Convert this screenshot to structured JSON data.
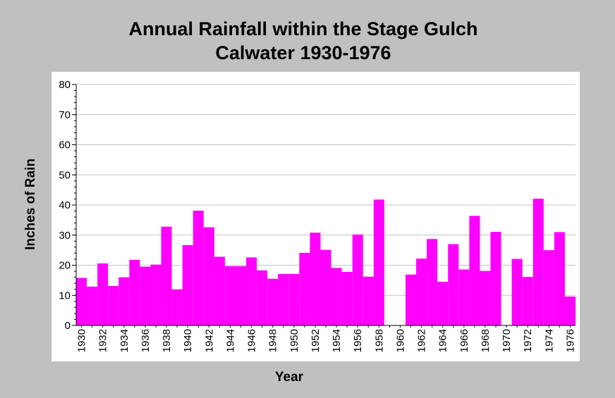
{
  "chart_data": {
    "type": "bar",
    "title": "Annual Rainfall within the Stage Gulch",
    "subtitle": "Calwater 1930-1976",
    "xlabel": "Year",
    "ylabel": "Inches of Rain",
    "ylim": [
      0,
      80
    ],
    "yticks": [
      "0",
      "10",
      "20",
      "30",
      "40",
      "50",
      "60",
      "70",
      "80"
    ],
    "grid": true,
    "bar_color": "#ff00ff",
    "plot_background": "#ffffff",
    "page_background": "#c0c0c0",
    "categories": [
      "1930",
      "1931",
      "1932",
      "1933",
      "1934",
      "1935",
      "1936",
      "1937",
      "1938",
      "1939",
      "1940",
      "1941",
      "1942",
      "1943",
      "1944",
      "1945",
      "1946",
      "1947",
      "1948",
      "1949",
      "1950",
      "1951",
      "1952",
      "1953",
      "1954",
      "1955",
      "1956",
      "1957",
      "1958",
      "1959",
      "1960",
      "1961",
      "1962",
      "1963",
      "1964",
      "1965",
      "1966",
      "1967",
      "1968",
      "1969",
      "1970",
      "1971",
      "1972",
      "1973",
      "1974",
      "1975",
      "1976"
    ],
    "xtick_labels": [
      "1930",
      "1932",
      "1934",
      "1936",
      "1938",
      "1940",
      "1942",
      "1944",
      "1946",
      "1948",
      "1950",
      "1952",
      "1954",
      "1956",
      "1958",
      "1960",
      "1962",
      "1964",
      "1966",
      "1968",
      "1970",
      "1972",
      "1974",
      "1976"
    ],
    "values": [
      15.8,
      12.9,
      20.6,
      13.1,
      16.0,
      21.8,
      19.5,
      20.2,
      32.8,
      12.0,
      26.7,
      38.1,
      32.6,
      22.8,
      19.7,
      19.7,
      22.6,
      18.3,
      15.5,
      17.1,
      17.1,
      24.1,
      30.8,
      25.1,
      19.1,
      17.8,
      30.2,
      16.2,
      41.8,
      null,
      null,
      16.9,
      22.2,
      28.7,
      14.5,
      27.0,
      18.6,
      36.4,
      18.1,
      31.1,
      null,
      22.1,
      16.1,
      42.1,
      25.0,
      31.0,
      9.6
    ]
  }
}
